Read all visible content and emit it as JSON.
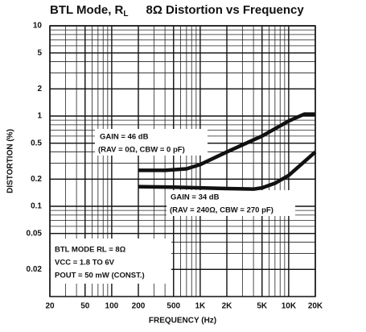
{
  "chart_data": {
    "type": "line",
    "title": [
      "BTL Mode, R",
      "L",
      "8Ω Distortion vs Frequency"
    ],
    "xlabel": "FREQUENCY (Hz)",
    "ylabel": "DISTORTION (%)",
    "xscale": "log",
    "yscale": "log",
    "xlim": [
      20,
      20000
    ],
    "ylim": [
      0.01,
      10
    ],
    "xticks": [
      20,
      50,
      100,
      200,
      500,
      {
        "value": 1000,
        "label": "1K"
      },
      {
        "value": 2000,
        "label": "2K"
      },
      {
        "value": 5000,
        "label": "5K"
      },
      {
        "value": 10000,
        "label": "10K"
      },
      {
        "value": 20000,
        "label": "20K"
      }
    ],
    "yticks": [
      10,
      5,
      2,
      1,
      0.5,
      0.2,
      0.1,
      0.05,
      0.02
    ],
    "grid": true,
    "minor_grid": true,
    "series": [
      {
        "name": "GAIN = 46 dB",
        "color": "#111111",
        "x": [
          200,
          400,
          700,
          1000,
          2000,
          5000,
          10000,
          15000,
          20000
        ],
        "values": [
          0.25,
          0.25,
          0.26,
          0.29,
          0.4,
          0.6,
          0.88,
          1.05,
          1.05
        ]
      },
      {
        "name": "GAIN = 34 dB",
        "color": "#111111",
        "x": [
          200,
          500,
          1000,
          2000,
          4000,
          5000,
          7000,
          10000,
          20000
        ],
        "values": [
          0.165,
          0.163,
          0.16,
          0.157,
          0.155,
          0.16,
          0.18,
          0.22,
          0.4
        ]
      }
    ],
    "annotations": [
      "(RAV = 0Ω, CBW = 0 pF)",
      "(RAV = 240Ω, CBW = 270 pF)",
      "BTL MODE  RL = 8Ω",
      "VCC = 1.8 TO 6V",
      "POUT = 50 mW (CONST.)"
    ]
  }
}
